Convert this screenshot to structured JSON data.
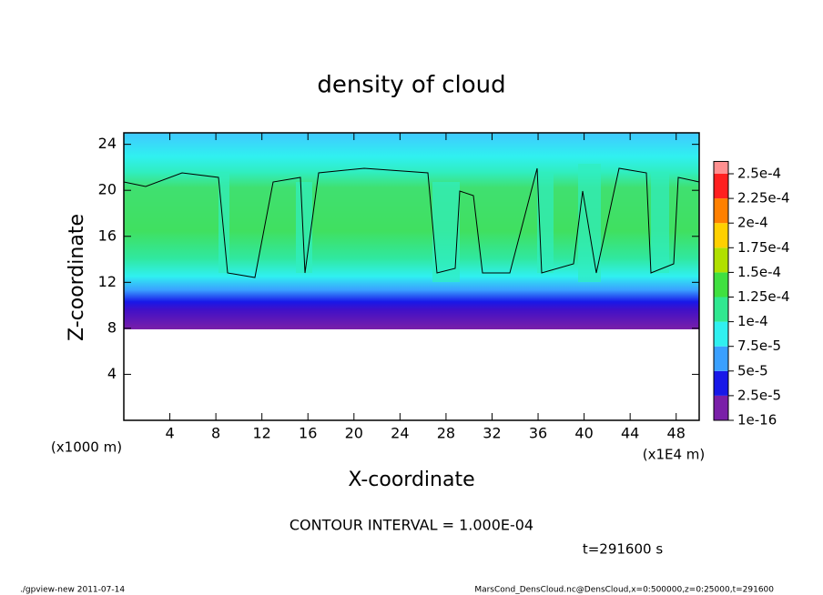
{
  "chart_data": {
    "type": "contour",
    "title": "density of cloud",
    "xlabel": "X-coordinate",
    "ylabel": "Z-coordinate",
    "x_unit": "(x1E4 m)",
    "y_unit": "(x1000 m)",
    "xlim": [
      0,
      50
    ],
    "xticks": [
      4,
      8,
      12,
      16,
      20,
      24,
      28,
      32,
      36,
      40,
      44,
      48
    ],
    "ylim": [
      0,
      25
    ],
    "yticks": [
      4,
      8,
      12,
      16,
      20,
      24
    ],
    "colorbar": {
      "ticks": [
        {
          "value": 1e-16,
          "label": "1e-16"
        },
        {
          "value": 2.5e-05,
          "label": "2.5e-5"
        },
        {
          "value": 5e-05,
          "label": "5e-5"
        },
        {
          "value": 7.5e-05,
          "label": "7.5e-5"
        },
        {
          "value": 0.0001,
          "label": "1e-4"
        },
        {
          "value": 0.000125,
          "label": "1.25e-4"
        },
        {
          "value": 0.00015,
          "label": "1.5e-4"
        },
        {
          "value": 0.000175,
          "label": "1.75e-4"
        },
        {
          "value": 0.0002,
          "label": "2e-4"
        },
        {
          "value": 0.000225,
          "label": "2.25e-4"
        },
        {
          "value": 0.00025,
          "label": "2.5e-4"
        }
      ],
      "colors": [
        "#7a1fa8",
        "#1818e8",
        "#3aa0ff",
        "#30f0f0",
        "#30e890",
        "#40e040",
        "#b0e000",
        "#ffd000",
        "#ff8000",
        "#ff2020",
        "#ff9090"
      ]
    },
    "annotations": [
      "CONTOUR INTERVAL = 1.000E-04",
      "t=291600 s"
    ],
    "footer_left": "./gpview-new  2011-07-14",
    "footer_right": "MarsCond_DensCloud.nc@DensCloud,x=0:500000,z=0:25000,t=291600"
  }
}
